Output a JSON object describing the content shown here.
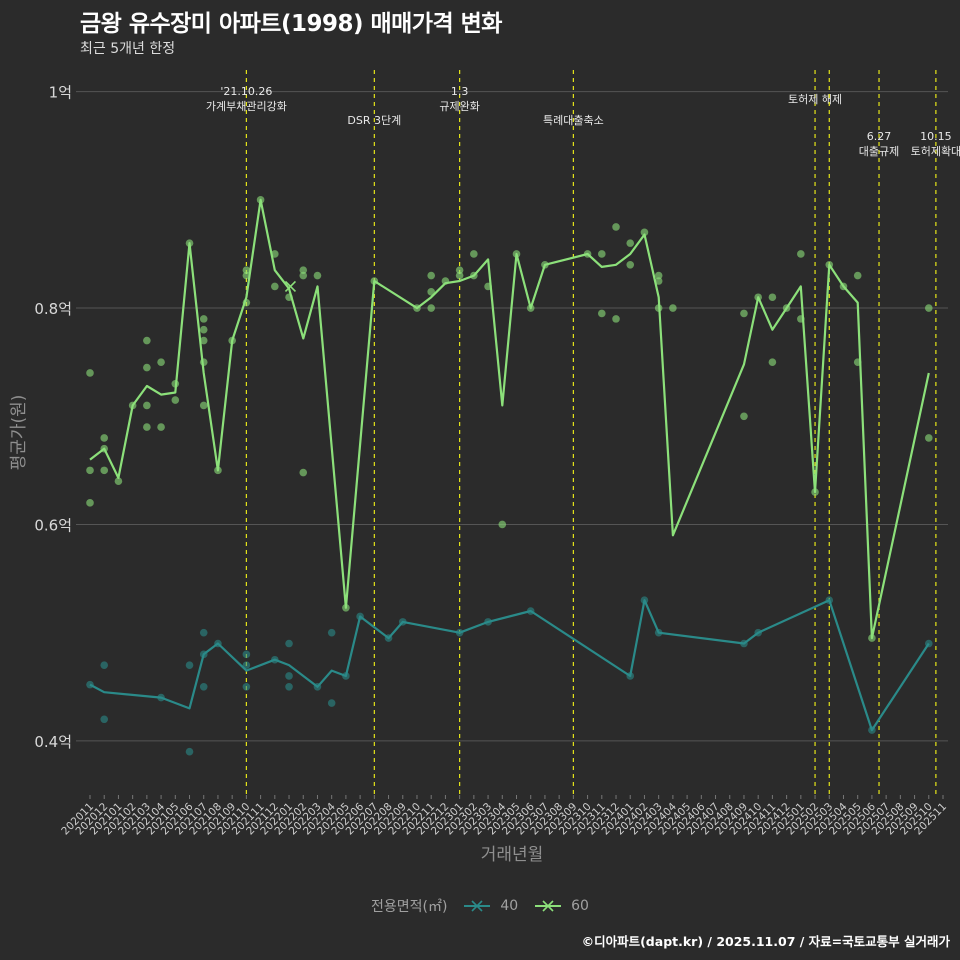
{
  "header": {
    "title": "금왕 유수장미 아파트(1998) 매매가격 변화",
    "subtitle": "최근 5개년 한정"
  },
  "footer": {
    "caption": "©디아파트(dapt.kr) / 2025.11.07 / 자료=국토교통부 실거래가"
  },
  "colors": {
    "bg": "#2b2b2b",
    "grid": "#555555",
    "s40": "#2a8a89",
    "s60": "#8ce07a",
    "event": "#e6e619"
  },
  "chart_data": {
    "type": "line",
    "title": "금왕 유수장미 아파트(1998) 매매가격 변화",
    "subtitle": "최근 5개년 한정",
    "xlabel": "거래년월",
    "ylabel": "평균가(원)",
    "ylim": [
      0.35,
      1.02
    ],
    "y_ticks": [
      0.4,
      0.6,
      0.8,
      1.0
    ],
    "y_tick_labels": [
      "0.4억",
      "0.6억",
      "0.8억",
      "1억"
    ],
    "categories": [
      "202011",
      "202012",
      "202101",
      "202102",
      "202103",
      "202104",
      "202105",
      "202106",
      "202107",
      "202108",
      "202109",
      "202110",
      "202111",
      "202112",
      "202201",
      "202202",
      "202203",
      "202204",
      "202205",
      "202206",
      "202207",
      "202208",
      "202209",
      "202210",
      "202211",
      "202212",
      "202301",
      "202302",
      "202303",
      "202304",
      "202305",
      "202306",
      "202307",
      "202308",
      "202309",
      "202310",
      "202311",
      "202312",
      "202401",
      "202402",
      "202403",
      "202404",
      "202405",
      "202406",
      "202407",
      "202408",
      "202409",
      "202410",
      "202411",
      "202412",
      "202501",
      "202502",
      "202503",
      "202504",
      "202505",
      "202506",
      "202507",
      "202508",
      "202509",
      "202510",
      "202511"
    ],
    "legend_title": "전용면적(㎡)",
    "series": [
      {
        "name": "40",
        "line": [
          [
            0,
            0.452
          ],
          [
            1,
            0.445
          ],
          [
            5,
            0.44
          ],
          [
            7,
            0.43
          ],
          [
            8,
            0.48
          ],
          [
            9,
            0.49
          ],
          [
            11,
            0.465
          ],
          [
            13,
            0.475
          ],
          [
            14,
            0.47
          ],
          [
            16,
            0.45
          ],
          [
            17,
            0.465
          ],
          [
            18,
            0.46
          ],
          [
            19,
            0.515
          ],
          [
            21,
            0.495
          ],
          [
            22,
            0.51
          ],
          [
            26,
            0.5
          ],
          [
            28,
            0.51
          ],
          [
            31,
            0.52
          ],
          [
            38,
            0.46
          ],
          [
            39,
            0.53
          ],
          [
            40,
            0.5
          ],
          [
            46,
            0.49
          ],
          [
            47,
            0.5
          ],
          [
            52,
            0.53
          ],
          [
            55,
            0.41
          ],
          [
            59,
            0.49
          ]
        ],
        "points": [
          [
            0,
            0.452
          ],
          [
            1,
            0.47
          ],
          [
            1,
            0.42
          ],
          [
            5,
            0.44
          ],
          [
            7,
            0.47
          ],
          [
            7,
            0.39
          ],
          [
            8,
            0.5
          ],
          [
            8,
            0.48
          ],
          [
            8,
            0.45
          ],
          [
            9,
            0.49
          ],
          [
            11,
            0.48
          ],
          [
            11,
            0.45
          ],
          [
            11,
            0.47
          ],
          [
            13,
            0.475
          ],
          [
            14,
            0.49
          ],
          [
            14,
            0.46
          ],
          [
            14,
            0.45
          ],
          [
            16,
            0.45
          ],
          [
            17,
            0.5
          ],
          [
            17,
            0.435
          ],
          [
            18,
            0.46
          ],
          [
            19,
            0.515
          ],
          [
            21,
            0.495
          ],
          [
            22,
            0.51
          ],
          [
            26,
            0.5
          ],
          [
            28,
            0.51
          ],
          [
            31,
            0.52
          ],
          [
            38,
            0.46
          ],
          [
            39,
            0.53
          ],
          [
            40,
            0.5
          ],
          [
            46,
            0.49
          ],
          [
            47,
            0.5
          ],
          [
            52,
            0.53
          ],
          [
            55,
            0.41
          ],
          [
            59,
            0.49
          ]
        ]
      },
      {
        "name": "60",
        "line": [
          [
            0,
            0.66
          ],
          [
            1,
            0.67
          ],
          [
            2,
            0.643
          ],
          [
            3,
            0.71
          ],
          [
            4,
            0.728
          ],
          [
            5,
            0.72
          ],
          [
            6,
            0.722
          ],
          [
            7,
            0.86
          ],
          [
            8,
            0.74
          ],
          [
            9,
            0.65
          ],
          [
            10,
            0.77
          ],
          [
            11,
            0.81
          ],
          [
            12,
            0.9
          ],
          [
            13,
            0.835
          ],
          [
            14,
            0.818
          ],
          [
            15,
            0.772
          ],
          [
            16,
            0.82
          ],
          [
            18,
            0.523
          ],
          [
            20,
            0.825
          ],
          [
            23,
            0.8
          ],
          [
            24,
            0.81
          ],
          [
            25,
            0.823
          ],
          [
            26,
            0.825
          ],
          [
            27,
            0.83
          ],
          [
            28,
            0.845
          ],
          [
            29,
            0.71
          ],
          [
            30,
            0.85
          ],
          [
            31,
            0.8
          ],
          [
            32,
            0.84
          ],
          [
            35,
            0.85
          ],
          [
            36,
            0.838
          ],
          [
            37,
            0.84
          ],
          [
            38,
            0.85
          ],
          [
            39,
            0.868
          ],
          [
            40,
            0.81
          ],
          [
            41,
            0.59
          ],
          [
            46,
            0.748
          ],
          [
            47,
            0.81
          ],
          [
            48,
            0.78
          ],
          [
            49,
            0.8
          ],
          [
            50,
            0.82
          ],
          [
            51,
            0.63
          ],
          [
            52,
            0.84
          ],
          [
            53,
            0.82
          ],
          [
            54,
            0.805
          ],
          [
            55,
            0.495
          ],
          [
            59,
            0.74
          ]
        ],
        "points": [
          [
            0,
            0.74
          ],
          [
            0,
            0.65
          ],
          [
            0,
            0.62
          ],
          [
            1,
            0.68
          ],
          [
            1,
            0.67
          ],
          [
            1,
            0.65
          ],
          [
            2,
            0.64
          ],
          [
            3,
            0.71
          ],
          [
            4,
            0.77
          ],
          [
            4,
            0.745
          ],
          [
            4,
            0.71
          ],
          [
            4,
            0.69
          ],
          [
            5,
            0.75
          ],
          [
            5,
            0.69
          ],
          [
            6,
            0.73
          ],
          [
            6,
            0.715
          ],
          [
            7,
            0.86
          ],
          [
            8,
            0.79
          ],
          [
            8,
            0.78
          ],
          [
            8,
            0.77
          ],
          [
            8,
            0.75
          ],
          [
            8,
            0.71
          ],
          [
            9,
            0.65
          ],
          [
            10,
            0.77
          ],
          [
            11,
            0.835
          ],
          [
            11,
            0.83
          ],
          [
            11,
            0.805
          ],
          [
            12,
            0.9
          ],
          [
            13,
            0.85
          ],
          [
            13,
            0.82
          ],
          [
            14,
            0.81
          ],
          [
            15,
            0.835
          ],
          [
            15,
            0.83
          ],
          [
            15,
            0.648
          ],
          [
            16,
            0.83
          ],
          [
            18,
            0.523
          ],
          [
            20,
            0.825
          ],
          [
            23,
            0.8
          ],
          [
            24,
            0.83
          ],
          [
            24,
            0.815
          ],
          [
            24,
            0.8
          ],
          [
            25,
            0.825
          ],
          [
            26,
            0.835
          ],
          [
            26,
            0.83
          ],
          [
            27,
            0.85
          ],
          [
            27,
            0.83
          ],
          [
            28,
            0.82
          ],
          [
            29,
            0.6
          ],
          [
            30,
            0.85
          ],
          [
            31,
            0.8
          ],
          [
            32,
            0.84
          ],
          [
            35,
            0.85
          ],
          [
            36,
            0.85
          ],
          [
            36,
            0.795
          ],
          [
            37,
            0.875
          ],
          [
            37,
            0.79
          ],
          [
            38,
            0.86
          ],
          [
            38,
            0.84
          ],
          [
            39,
            0.87
          ],
          [
            40,
            0.83
          ],
          [
            40,
            0.825
          ],
          [
            40,
            0.8
          ],
          [
            41,
            0.8
          ],
          [
            46,
            0.795
          ],
          [
            46,
            0.7
          ],
          [
            47,
            0.81
          ],
          [
            48,
            0.81
          ],
          [
            48,
            0.75
          ],
          [
            49,
            0.8
          ],
          [
            50,
            0.85
          ],
          [
            50,
            0.79
          ],
          [
            51,
            0.63
          ],
          [
            52,
            0.84
          ],
          [
            53,
            0.82
          ],
          [
            54,
            0.83
          ],
          [
            54,
            0.75
          ],
          [
            55,
            0.495
          ],
          [
            59,
            0.8
          ],
          [
            59,
            0.68
          ]
        ]
      }
    ],
    "cross_markers": [
      {
        "series": "60",
        "x": 14.1,
        "y": 0.82
      }
    ],
    "events": [
      {
        "x": 11,
        "lines": [
          "'21.10.26",
          "가계부채관리강화"
        ],
        "row": 0
      },
      {
        "x": 20,
        "lines": [
          "DSR 3단계"
        ],
        "row": 2
      },
      {
        "x": 26,
        "lines": [
          "1.3",
          "규제완화"
        ],
        "row": 0
      },
      {
        "x": 34,
        "lines": [
          "특례대출축소"
        ],
        "row": 2
      },
      {
        "x": 51,
        "lines": [
          "토허제 해제"
        ],
        "row": 1
      },
      {
        "x": 52,
        "lines": [
          ""
        ],
        "row": 1
      },
      {
        "x": 55.5,
        "lines": [
          "6.27",
          "대출규제"
        ],
        "row": 3
      },
      {
        "x": 59.5,
        "lines": [
          "10.15",
          "토허제확대"
        ],
        "row": 3
      }
    ]
  }
}
